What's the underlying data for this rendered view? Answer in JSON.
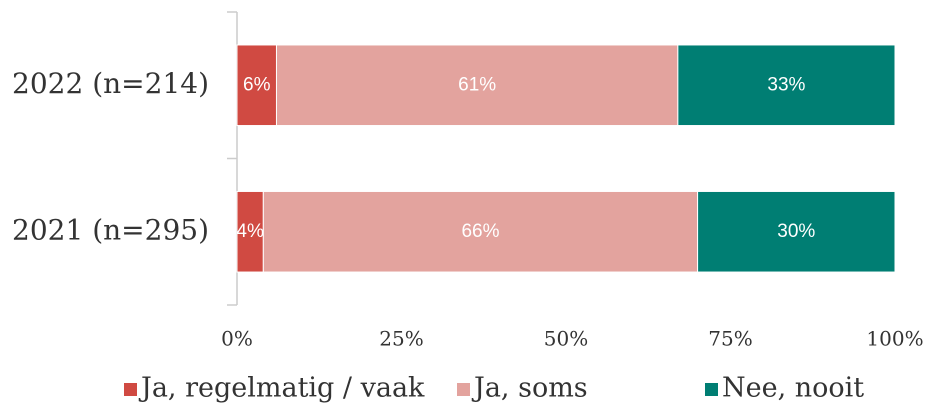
{
  "chart_data": {
    "type": "stacked-bar-horizontal",
    "categories": [
      "2022 (n=214)",
      "2021 (n=295)"
    ],
    "series": [
      {
        "name": "Ja, regelmatig / vaak",
        "color": "#d04a42",
        "values": [
          6,
          4
        ],
        "value_labels": [
          "6%",
          "4%"
        ]
      },
      {
        "name": "Ja, soms",
        "color": "#e3a39e",
        "values": [
          61,
          66
        ],
        "value_labels": [
          "61%",
          "66%"
        ]
      },
      {
        "name": "Nee, nooit",
        "color": "#007e73",
        "values": [
          33,
          30
        ],
        "value_labels": [
          "33%",
          "30%"
        ]
      }
    ],
    "xlim": [
      0,
      100
    ],
    "xticks": [
      {
        "value": 0,
        "label": "0%"
      },
      {
        "value": 25,
        "label": "25%"
      },
      {
        "value": 50,
        "label": "50%"
      },
      {
        "value": 75,
        "label": "75%"
      },
      {
        "value": 100,
        "label": "100%"
      }
    ],
    "legend": "bottom"
  }
}
